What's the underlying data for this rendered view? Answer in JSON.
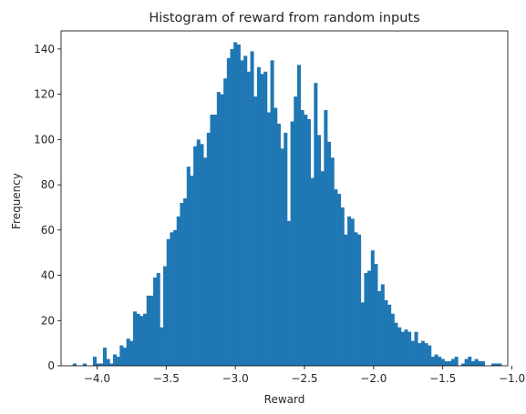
{
  "chart_data": {
    "type": "bar",
    "subtype": "histogram",
    "title": "Histogram of reward from random inputs",
    "xlabel": "Reward",
    "ylabel": "Frequency",
    "xlim": [
      -4.26,
      -1.03
    ],
    "ylim": [
      0,
      148
    ],
    "xticks": [
      -4.0,
      -3.5,
      -3.0,
      -2.5,
      -2.0,
      -1.5,
      -1.0
    ],
    "xtick_labels": [
      "−4.0",
      "−3.5",
      "−3.0",
      "−2.5",
      "−2.0",
      "−1.5",
      "−1.0"
    ],
    "yticks": [
      0,
      20,
      40,
      60,
      80,
      100,
      120,
      140
    ],
    "ytick_labels": [
      "0",
      "20",
      "40",
      "60",
      "80",
      "100",
      "120",
      "140"
    ],
    "grid": false,
    "color": "#1f77b4",
    "bin_start": -4.175,
    "bin_width": 0.0306,
    "counts": [
      1,
      0,
      0,
      1,
      0,
      0,
      4,
      1,
      1,
      8,
      3,
      1,
      5,
      4,
      9,
      8,
      12,
      11,
      24,
      23,
      22,
      23,
      31,
      31,
      39,
      41,
      17,
      44,
      56,
      59,
      60,
      66,
      72,
      74,
      88,
      84,
      97,
      100,
      98,
      92,
      103,
      111,
      111,
      121,
      120,
      127,
      136,
      140,
      143,
      142,
      135,
      137,
      130,
      139,
      119,
      132,
      129,
      130,
      112,
      135,
      114,
      107,
      96,
      103,
      64,
      108,
      119,
      133,
      113,
      111,
      109,
      83,
      125,
      102,
      86,
      113,
      99,
      92,
      78,
      76,
      70,
      58,
      66,
      65,
      59,
      58,
      28,
      41,
      42,
      51,
      45,
      33,
      36,
      29,
      27,
      23,
      19,
      17,
      15,
      16,
      15,
      11,
      15,
      10,
      11,
      10,
      9,
      4,
      5,
      4,
      3,
      2,
      2,
      3,
      4,
      0,
      1,
      3,
      4,
      2,
      3,
      2,
      2,
      0,
      0,
      1,
      1,
      1
    ],
    "counts_note": "",
    "x_range_of_bins": [
      -4.175,
      -1.076
    ]
  }
}
